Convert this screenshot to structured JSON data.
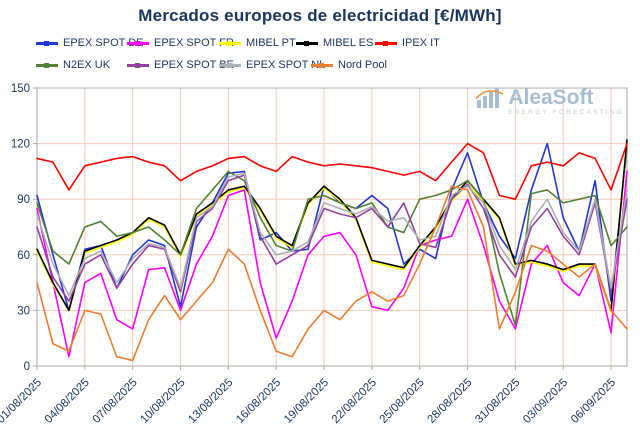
{
  "watermark": {
    "brand": "AleaSoft",
    "tagline": "ENERGY FORECASTING"
  },
  "chart_data": {
    "type": "line",
    "title": "Mercados europeos de electricidad [€/MWh]",
    "xlabel": "",
    "ylabel": "",
    "ylim": [
      0,
      150
    ],
    "yticks": [
      0,
      30,
      60,
      90,
      120,
      150
    ],
    "grid": true,
    "legend_position": "top",
    "legend_rows": [
      [
        0,
        1,
        2,
        3,
        4
      ],
      [
        5,
        6,
        7,
        8
      ]
    ],
    "colors": {
      "grid": "#f5c9b4",
      "border": "#ababab",
      "axis_text": "#1f3864"
    },
    "x_tick_indices": [
      0,
      3,
      6,
      9,
      12,
      15,
      18,
      21,
      24,
      27,
      30,
      33,
      36
    ],
    "x_tick_labels": [
      "01/08/2025",
      "04/08/2025",
      "07/08/2025",
      "10/08/2025",
      "13/08/2025",
      "16/08/2025",
      "19/08/2025",
      "22/08/2025",
      "25/08/2025",
      "28/08/2025",
      "31/08/2025",
      "03/09/2025",
      "06/09/2025"
    ],
    "x": [
      "01/08/2025",
      "02/08/2025",
      "03/08/2025",
      "04/08/2025",
      "05/08/2025",
      "06/08/2025",
      "07/08/2025",
      "08/08/2025",
      "09/08/2025",
      "10/08/2025",
      "11/08/2025",
      "12/08/2025",
      "13/08/2025",
      "14/08/2025",
      "15/08/2025",
      "16/08/2025",
      "17/08/2025",
      "18/08/2025",
      "19/08/2025",
      "20/08/2025",
      "21/08/2025",
      "22/08/2025",
      "23/08/2025",
      "24/08/2025",
      "25/08/2025",
      "26/08/2025",
      "27/08/2025",
      "28/08/2025",
      "29/08/2025",
      "30/08/2025",
      "31/08/2025",
      "01/09/2025",
      "02/09/2025",
      "03/09/2025",
      "04/09/2025",
      "05/09/2025",
      "06/09/2025",
      "07/09/2025"
    ],
    "series": [
      {
        "name": "EPEX SPOT DE",
        "color": "#2038d0",
        "values": [
          92,
          60,
          30,
          63,
          65,
          42,
          60,
          68,
          65,
          32,
          75,
          88,
          104,
          105,
          68,
          72,
          62,
          63,
          97,
          88,
          85,
          92,
          85,
          55,
          63,
          58,
          95,
          115,
          88,
          70,
          58,
          95,
          120,
          80,
          62,
          100,
          35,
          118
        ]
      },
      {
        "name": "EPEX SPOT FR",
        "color": "#ff00ff",
        "values": [
          85,
          45,
          5,
          45,
          50,
          25,
          20,
          52,
          53,
          30,
          55,
          70,
          92,
          95,
          45,
          15,
          35,
          60,
          70,
          72,
          60,
          32,
          30,
          42,
          65,
          68,
          70,
          90,
          65,
          35,
          20,
          55,
          65,
          45,
          38,
          55,
          18,
          105
        ]
      },
      {
        "name": "MIBEL PT",
        "color": "#ffff00",
        "values": [
          62,
          44,
          30,
          61,
          64,
          67,
          71,
          79,
          75,
          59,
          81,
          87,
          94,
          96,
          84,
          69,
          64,
          87,
          96,
          89,
          79,
          56,
          54,
          52,
          64,
          74,
          89,
          98,
          89,
          79,
          54,
          56,
          54,
          51,
          54,
          54,
          29,
          120
        ]
      },
      {
        "name": "MIBEL ES",
        "color": "#000000",
        "values": [
          63,
          45,
          30,
          62,
          65,
          68,
          72,
          80,
          76,
          60,
          82,
          88,
          95,
          97,
          85,
          70,
          65,
          88,
          97,
          90,
          80,
          57,
          55,
          53,
          65,
          75,
          90,
          100,
          90,
          80,
          55,
          57,
          55,
          52,
          55,
          55,
          30,
          122
        ]
      },
      {
        "name": "IPEX IT",
        "color": "#ff0000",
        "values": [
          112,
          110,
          95,
          108,
          110,
          112,
          113,
          110,
          108,
          100,
          105,
          108,
          112,
          113,
          108,
          105,
          113,
          110,
          108,
          109,
          108,
          107,
          105,
          103,
          105,
          100,
          110,
          120,
          115,
          92,
          90,
          108,
          110,
          108,
          115,
          112,
          95,
          120
        ]
      },
      {
        "name": "N2EX UK",
        "color": "#538135",
        "values": [
          88,
          62,
          55,
          75,
          78,
          70,
          72,
          75,
          68,
          60,
          85,
          95,
          105,
          100,
          80,
          65,
          62,
          90,
          92,
          88,
          85,
          88,
          75,
          72,
          90,
          92,
          95,
          100,
          90,
          50,
          22,
          93,
          95,
          88,
          90,
          92,
          65,
          75
        ]
      },
      {
        "name": "EPEX SPOT BE",
        "color": "#9641a0",
        "values": [
          75,
          48,
          35,
          55,
          60,
          42,
          55,
          65,
          63,
          40,
          78,
          85,
          100,
          103,
          70,
          55,
          60,
          65,
          85,
          82,
          80,
          85,
          75,
          88,
          66,
          64,
          90,
          98,
          85,
          60,
          48,
          75,
          85,
          70,
          60,
          88,
          40,
          90
        ]
      },
      {
        "name": "EPEX SPOT NL",
        "color": "#aab0b8",
        "values": [
          82,
          55,
          38,
          58,
          62,
          45,
          58,
          66,
          64,
          42,
          80,
          86,
          102,
          104,
          72,
          60,
          62,
          67,
          88,
          85,
          82,
          86,
          78,
          80,
          68,
          70,
          92,
          97,
          88,
          65,
          52,
          78,
          90,
          72,
          62,
          90,
          42,
          95
        ]
      },
      {
        "name": "Nord Pool",
        "color": "#ed7d31",
        "values": [
          45,
          12,
          8,
          30,
          28,
          5,
          3,
          25,
          38,
          25,
          35,
          45,
          63,
          55,
          30,
          8,
          5,
          20,
          30,
          25,
          35,
          40,
          35,
          38,
          55,
          75,
          97,
          95,
          75,
          20,
          40,
          65,
          62,
          55,
          48,
          55,
          30,
          20
        ]
      }
    ]
  }
}
